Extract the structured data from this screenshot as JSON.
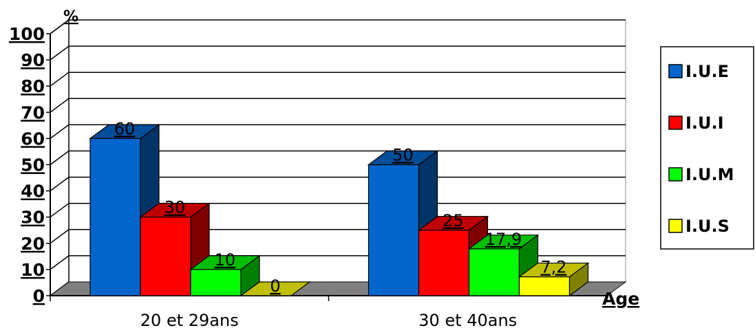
{
  "chart_data": {
    "type": "bar",
    "y_unit_label": "%",
    "xlabel": "Age",
    "categories": [
      "20 et 29ans",
      "30 et 40ans"
    ],
    "ylim": [
      0,
      100
    ],
    "yticks": [
      "0",
      "10",
      "20",
      "30",
      "40",
      "50",
      "60",
      "70",
      "80",
      "90",
      "100"
    ],
    "grid": true,
    "legend_position": "right",
    "series": [
      {
        "name": "I.U.E",
        "values": [
          60,
          50
        ],
        "labels": [
          "60",
          "50"
        ],
        "color": "#0066cc"
      },
      {
        "name": "I.U.I",
        "values": [
          30,
          25
        ],
        "labels": [
          "30",
          "25"
        ],
        "color": "#ff0000"
      },
      {
        "name": "I.U.M",
        "values": [
          10,
          17.9
        ],
        "labels": [
          "10",
          "17,9"
        ],
        "color": "#00ff00"
      },
      {
        "name": "I.U.S",
        "values": [
          0,
          7.2
        ],
        "labels": [
          "0",
          "7,2"
        ],
        "color": "#ffff00"
      }
    ]
  }
}
